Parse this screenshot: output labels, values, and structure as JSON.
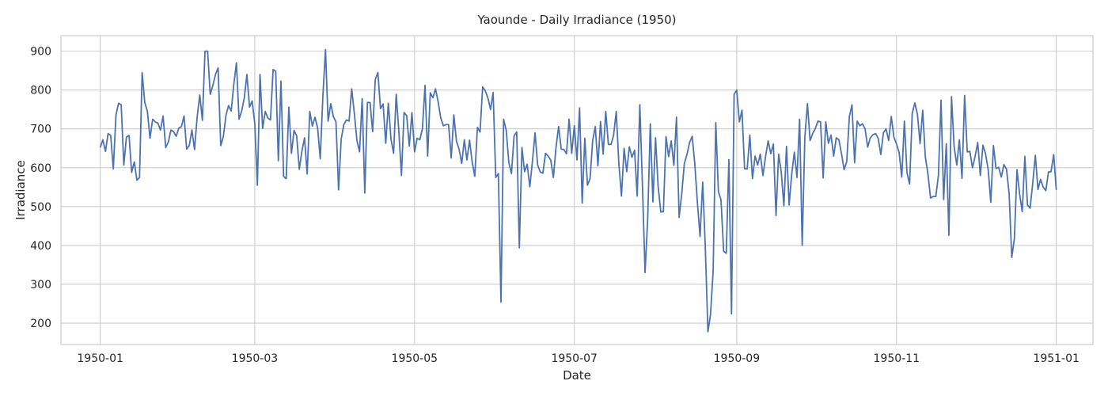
{
  "chart_data": {
    "type": "line",
    "title": "Yaounde - Daily Irradiance (1950)",
    "xlabel": "Date",
    "ylabel": "Irradiance",
    "x_ticks": [
      "1950-01",
      "1950-03",
      "1950-05",
      "1950-07",
      "1950-09",
      "1950-11",
      "1951-01"
    ],
    "y_ticks": [
      200,
      300,
      400,
      500,
      600,
      700,
      800,
      900
    ],
    "ylim": [
      145,
      940
    ],
    "xlim": [
      "1949-12-17",
      "1951-01-15"
    ],
    "grid": true,
    "x_start": "1950-01-01",
    "x_end": "1950-12-31",
    "series": [
      {
        "color": "#4c72b0",
        "values": [
          652,
          672,
          642,
          688,
          683,
          597,
          735,
          766,
          762,
          607,
          679,
          683,
          588,
          615,
          568,
          575,
          845,
          768,
          745,
          676,
          725,
          718,
          715,
          697,
          733,
          652,
          666,
          697,
          693,
          681,
          702,
          706,
          733,
          648,
          657,
          697,
          647,
          730,
          787,
          722,
          900,
          900,
          789,
          812,
          840,
          857,
          657,
          680,
          735,
          760,
          746,
          815,
          870,
          725,
          746,
          780,
          840,
          756,
          772,
          714,
          555,
          840,
          701,
          745,
          728,
          723,
          853,
          848,
          618,
          823,
          578,
          572,
          756,
          637,
          696,
          682,
          596,
          643,
          677,
          584,
          745,
          707,
          730,
          702,
          623,
          784,
          904,
          720,
          765,
          732,
          718,
          543,
          674,
          711,
          723,
          720,
          803,
          741,
          670,
          641,
          778,
          535,
          768,
          768,
          693,
          827,
          845,
          752,
          764,
          663,
          766,
          674,
          637,
          789,
          694,
          580,
          742,
          734,
          656,
          742,
          641,
          676,
          672,
          700,
          812,
          630,
          793,
          780,
          803,
          770,
          728,
          708,
          711,
          711,
          625,
          736,
          668,
          648,
          611,
          672,
          620,
          671,
          615,
          578,
          704,
          692,
          808,
          798,
          780,
          750,
          794,
          575,
          585,
          254,
          725,
          696,
          613,
          585,
          682,
          692,
          394,
          652,
          590,
          609,
          551,
          616,
          690,
          607,
          589,
          586,
          637,
          630,
          620,
          575,
          652,
          706,
          648,
          647,
          636,
          725,
          637,
          708,
          620,
          754,
          509,
          676,
          555,
          572,
          670,
          706,
          605,
          719,
          635,
          745,
          660,
          660,
          684,
          745,
          610,
          527,
          650,
          590,
          654,
          627,
          645,
          527,
          762,
          556,
          330,
          467,
          713,
          512,
          677,
          552,
          486,
          487,
          680,
          629,
          669,
          606,
          730,
          472,
          533,
          611,
          634,
          665,
          681,
          609,
          509,
          423,
          563,
          397,
          178,
          223,
          335,
          716,
          539,
          517,
          385,
          380,
          621,
          224,
          789,
          800,
          718,
          748,
          597,
          597,
          684,
          572,
          630,
          607,
          635,
          580,
          629,
          669,
          636,
          661,
          477,
          635,
          589,
          502,
          655,
          504,
          584,
          640,
          575,
          725,
          400,
          678,
          765,
          670,
          688,
          701,
          720,
          718,
          574,
          718,
          663,
          684,
          630,
          677,
          672,
          636,
          595,
          616,
          732,
          762,
          613,
          720,
          708,
          713,
          700,
          653,
          677,
          685,
          688,
          676,
          634,
          690,
          700,
          670,
          732,
          679,
          661,
          639,
          576,
          720,
          587,
          558,
          740,
          767,
          737,
          662,
          748,
          628,
          584,
          522,
          526,
          526,
          580,
          774,
          518,
          662,
          426,
          783,
          654,
          607,
          672,
          573,
          786,
          641,
          642,
          600,
          629,
          665,
          580,
          658,
          636,
          595,
          511,
          657,
          598,
          601,
          576,
          608,
          596,
          533,
          369,
          418,
          595,
          532,
          487,
          629,
          504,
          496,
          560,
          632,
          544,
          570,
          550,
          541,
          589,
          590,
          634,
          543
        ]
      }
    ]
  }
}
